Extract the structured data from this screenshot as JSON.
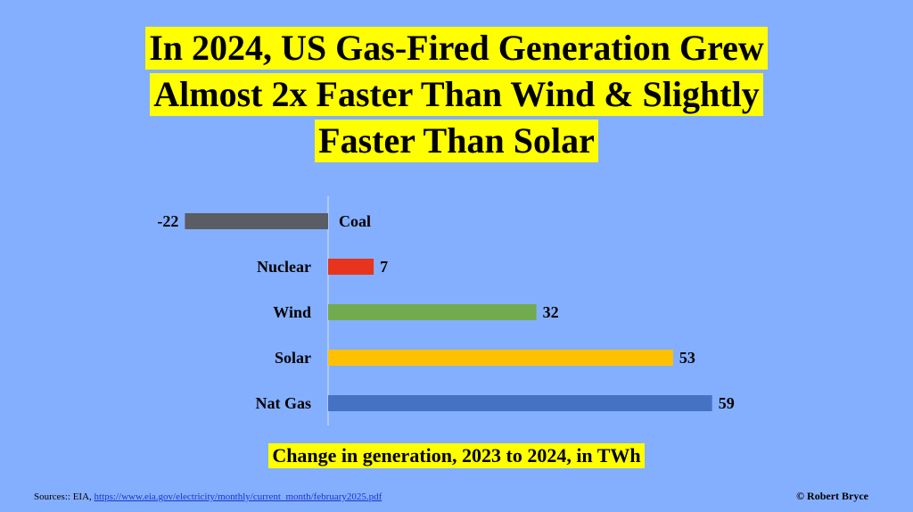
{
  "title_lines": [
    "In 2024, US Gas-Fired Generation Grew",
    "Almost 2x Faster Than Wind & Slightly",
    "Faster Than Solar"
  ],
  "chart_data": {
    "type": "bar",
    "orientation": "horizontal",
    "categories": [
      "Coal",
      "Nuclear",
      "Wind",
      "Solar",
      "Nat Gas"
    ],
    "values": [
      -22,
      7,
      32,
      53,
      59
    ],
    "value_labels": [
      "-22",
      "7",
      "32",
      "53",
      "59"
    ],
    "colors": [
      "#5A5D63",
      "#E8341C",
      "#72AB4F",
      "#FFC000",
      "#4672C4"
    ],
    "xlabel": "Change in generation, 2023 to 2024, in TWh",
    "xlim": [
      -22,
      59
    ],
    "grid": false,
    "legend": "none"
  },
  "caption": "Change in generation, 2023 to 2024, in TWh",
  "footer": {
    "sources_prefix": "Sources:: EIA, ",
    "sources_link": "https://www.eia.gov/electricity/monthly/current_month/february2025.pdf",
    "credit": "© Robert Bryce"
  },
  "colors": {
    "background": "#84AFFF",
    "highlight": "#FFFF00"
  }
}
